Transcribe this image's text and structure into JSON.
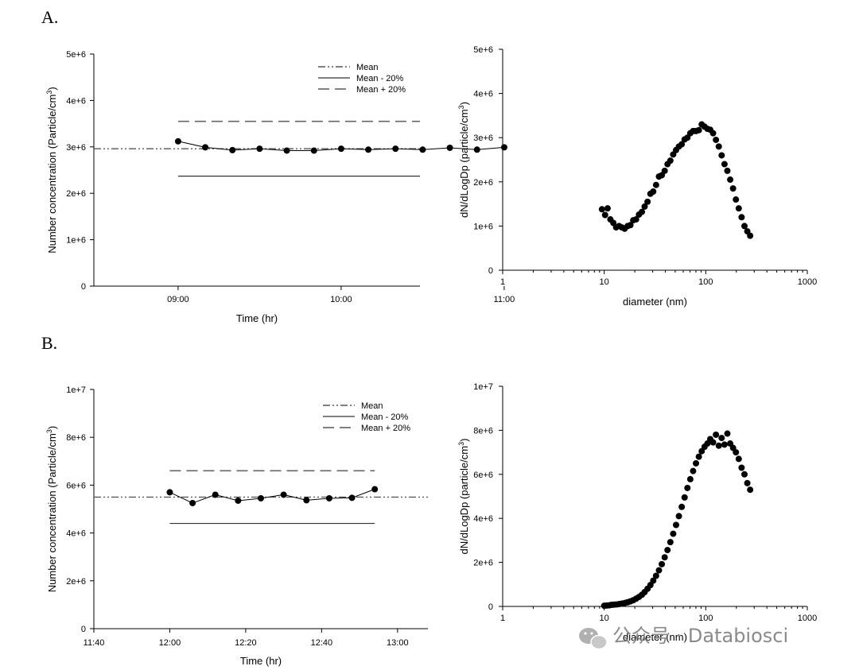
{
  "panels": [
    {
      "label": "A."
    },
    {
      "label": "B."
    }
  ],
  "watermark": {
    "icon": "wechat-icon",
    "text": "公众号 · Databiosci"
  },
  "chart_data": [
    {
      "id": "A-time",
      "type": "line",
      "xlabel": "Time (hr)",
      "ylabel": "Number concentration (Particle/cm",
      "ylabel_sup": "3",
      "ylabel_end": ")",
      "x_unit": "minutes after 08:00",
      "xlim": [
        29,
        149
      ],
      "x_tick_values": [
        60,
        120,
        180
      ],
      "x_tick_labels": [
        "09:00",
        "10:00",
        "11:00"
      ],
      "ylim": [
        0,
        5000000
      ],
      "y_tick_values": [
        0,
        1000000,
        2000000,
        3000000,
        4000000,
        5000000
      ],
      "y_tick_labels": [
        "0",
        "1e+6",
        "2e+6",
        "3e+6",
        "4e+6",
        "5e+6"
      ],
      "series": [
        {
          "kind": "data",
          "x": [
            60,
            70,
            80,
            90,
            100,
            110,
            120,
            130,
            140,
            150,
            160,
            170,
            180
          ],
          "y": [
            3120000,
            2990000,
            2930000,
            2960000,
            2920000,
            2920000,
            2960000,
            2940000,
            2960000,
            2940000,
            2980000,
            2940000,
            2990000
          ]
        }
      ],
      "reference_lines": [
        {
          "name": "Mean",
          "style": "dashdotdot",
          "y": 2960000,
          "x": [
            29,
            209
          ]
        },
        {
          "name": "Mean - 20%",
          "style": "solid",
          "y": 2370000,
          "x": [
            60,
            180
          ]
        },
        {
          "name": "Mean + 20%",
          "style": "dashed",
          "y": 3550000,
          "x": [
            60,
            180
          ]
        }
      ],
      "legend": [
        "Mean",
        "Mean - 20%",
        "Mean + 20%"
      ],
      "legend_position": "top-right"
    },
    {
      "id": "A-size",
      "type": "scatter",
      "xlabel": "diameter (nm)",
      "ylabel": "dN/dLogDp (particle/cm",
      "ylabel_sup": "3",
      "ylabel_end": ")",
      "xscale": "log",
      "xlim": [
        1,
        1000
      ],
      "x_tick_values": [
        1,
        10,
        100,
        1000
      ],
      "x_tick_labels": [
        "1",
        "10",
        "100",
        "1000"
      ],
      "ylim": [
        0,
        5000000
      ],
      "y_tick_values": [
        0,
        1000000,
        2000000,
        3000000,
        4000000,
        5000000
      ],
      "y_tick_labels": [
        "0",
        "1e+6",
        "2e+6",
        "3e+6",
        "4e+6",
        "5e+6"
      ],
      "series": [
        {
          "kind": "data",
          "x": [
            9.5,
            10.2,
            10.8,
            11.5,
            12.3,
            13.1,
            14.0,
            14.9,
            15.9,
            17.0,
            18.1,
            19.3,
            20.6,
            22.0,
            23.5,
            25.0,
            26.7,
            28.5,
            30.4,
            32.4,
            34.6,
            36.9,
            39.4,
            42.0,
            44.8,
            47.8,
            51.0,
            54.4,
            58.0,
            61.9,
            66.0,
            70.4,
            75.1,
            80.1,
            85.5,
            91.2,
            97.3,
            103.8,
            110.7,
            118.1,
            126.0,
            134.4,
            143.4,
            153.0,
            163.2,
            174.1,
            185.7,
            198.1,
            211.3,
            225.4,
            240.5,
            256.6,
            273.7
          ],
          "y": [
            1380000,
            1250000,
            1400000,
            1150000,
            1070000,
            970000,
            1000000,
            970000,
            940000,
            1000000,
            1020000,
            1130000,
            1150000,
            1260000,
            1320000,
            1440000,
            1550000,
            1730000,
            1780000,
            1930000,
            2120000,
            2150000,
            2250000,
            2400000,
            2480000,
            2620000,
            2720000,
            2800000,
            2850000,
            2960000,
            3000000,
            3100000,
            3150000,
            3150000,
            3170000,
            3300000,
            3250000,
            3200000,
            3180000,
            3100000,
            2950000,
            2800000,
            2600000,
            2400000,
            2250000,
            2050000,
            1850000,
            1600000,
            1400000,
            1200000,
            1000000,
            880000,
            780000
          ]
        }
      ]
    },
    {
      "id": "B-time",
      "type": "line",
      "xlabel": "Time (hr)",
      "ylabel": "Number concentration (Particle/cm",
      "ylabel_sup": "3",
      "ylabel_end": ")",
      "x_unit": "minutes after 11:00",
      "xlim": [
        40,
        128
      ],
      "x_tick_values": [
        40,
        60,
        80,
        100,
        120
      ],
      "x_tick_labels": [
        "11:40",
        "12:00",
        "12:20",
        "12:40",
        "13:00"
      ],
      "ylim": [
        0,
        10000000
      ],
      "y_tick_values": [
        0,
        2000000,
        4000000,
        6000000,
        8000000,
        10000000
      ],
      "y_tick_labels": [
        "0",
        "2e+6",
        "4e+6",
        "6e+6",
        "8e+6",
        "1e+7"
      ],
      "series": [
        {
          "kind": "data",
          "x": [
            60,
            66,
            72,
            78,
            84,
            90,
            96,
            102,
            108,
            114
          ],
          "y": [
            5700000,
            5250000,
            5600000,
            5350000,
            5450000,
            5600000,
            5370000,
            5450000,
            5470000,
            5830000
          ]
        }
      ],
      "reference_lines": [
        {
          "name": "Mean",
          "style": "dashdotdot",
          "y": 5500000,
          "x": [
            40,
            128
          ]
        },
        {
          "name": "Mean - 20%",
          "style": "solid",
          "y": 4400000,
          "x": [
            60,
            114
          ]
        },
        {
          "name": "Mean + 20%",
          "style": "dashed",
          "y": 6600000,
          "x": [
            60,
            114
          ]
        }
      ],
      "legend": [
        "Mean",
        "Mean - 20%",
        "Mean + 20%"
      ],
      "legend_position": "top-right"
    },
    {
      "id": "B-size",
      "type": "scatter",
      "xlabel": "diameter (nm)",
      "ylabel": "dN/dLogDp (particle/cm",
      "ylabel_sup": "3",
      "ylabel_end": ")",
      "xscale": "log",
      "xlim": [
        1,
        1000
      ],
      "x_tick_values": [
        1,
        10,
        100,
        1000
      ],
      "x_tick_labels": [
        "1",
        "10",
        "100",
        "1000"
      ],
      "ylim": [
        0,
        10000000
      ],
      "y_tick_values": [
        0,
        2000000,
        4000000,
        6000000,
        8000000,
        10000000
      ],
      "y_tick_labels": [
        "0",
        "2e+6",
        "4e+6",
        "6e+6",
        "8e+6",
        "1e+7"
      ],
      "series": [
        {
          "kind": "data",
          "x": [
            10.0,
            10.6,
            11.2,
            11.8,
            12.5,
            13.3,
            14.1,
            15.0,
            16.0,
            17.0,
            18.1,
            19.3,
            20.6,
            22.0,
            23.5,
            25.0,
            26.7,
            28.5,
            30.4,
            32.4,
            34.6,
            36.9,
            39.4,
            42.0,
            44.8,
            47.8,
            51.0,
            54.4,
            58.0,
            61.9,
            66.0,
            70.4,
            75.1,
            80.1,
            85.5,
            91.2,
            97.3,
            103.8,
            110.7,
            118.1,
            126.0,
            134.4,
            143.4,
            153.0,
            163.2,
            174.1,
            185.7,
            198.1,
            211.3,
            225.4,
            240.5,
            256.6,
            273.7
          ],
          "y": [
            30000,
            40000,
            50000,
            70000,
            80000,
            90000,
            110000,
            130000,
            160000,
            190000,
            230000,
            280000,
            350000,
            430000,
            530000,
            650000,
            800000,
            970000,
            1170000,
            1390000,
            1640000,
            1920000,
            2230000,
            2560000,
            2920000,
            3300000,
            3700000,
            4100000,
            4520000,
            4950000,
            5380000,
            5780000,
            6150000,
            6500000,
            6800000,
            7050000,
            7250000,
            7400000,
            7600000,
            7450000,
            7800000,
            7300000,
            7650000,
            7350000,
            7850000,
            7400000,
            7200000,
            7000000,
            6700000,
            6300000,
            6000000,
            5600000,
            5300000
          ]
        }
      ]
    }
  ]
}
